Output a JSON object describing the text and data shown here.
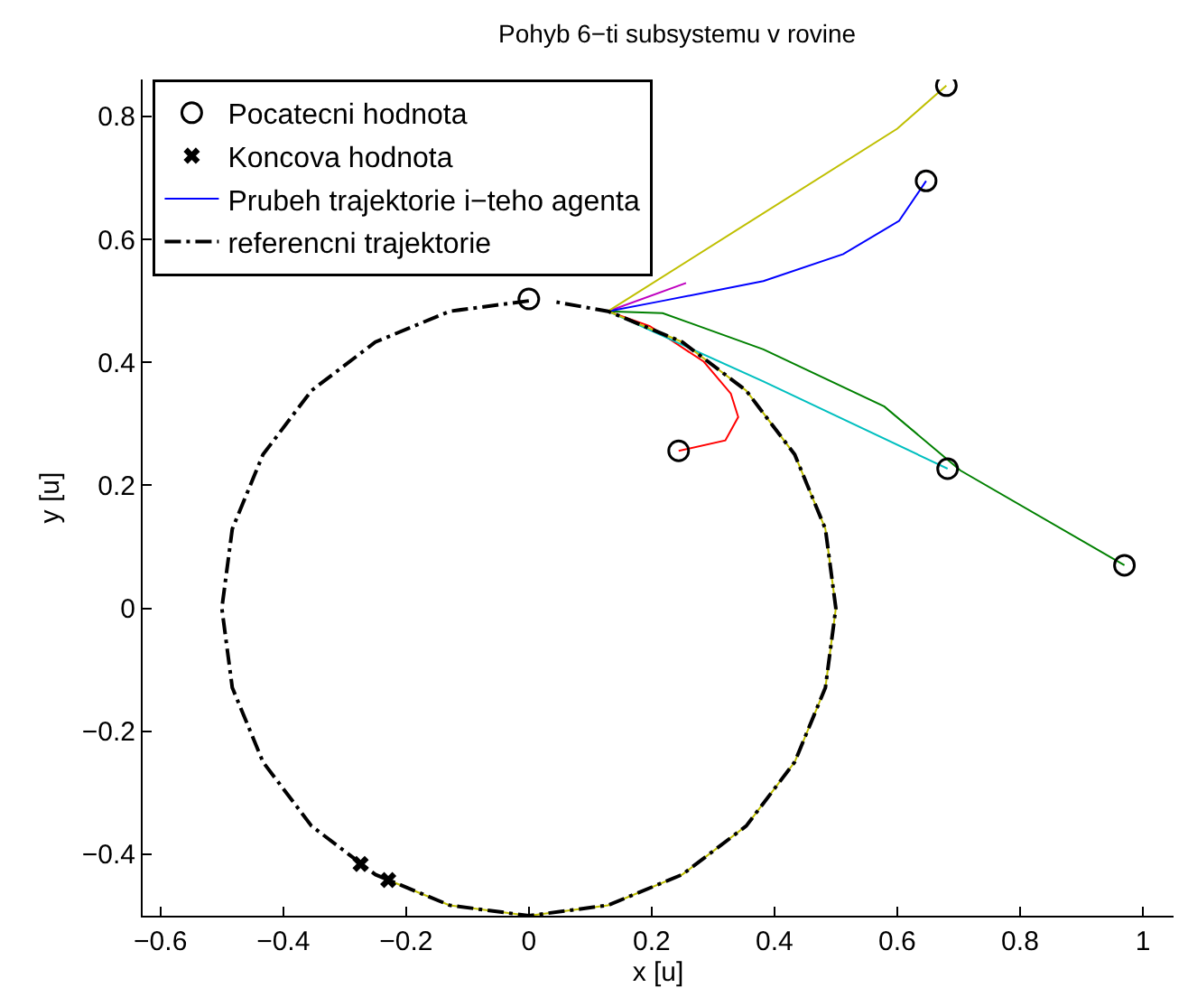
{
  "chart_data": {
    "type": "line",
    "title": "Pohyb 6−ti subsystemu v rovine",
    "xlabel": "x [u]",
    "ylabel": "y [u]",
    "xlim": [
      -0.629,
      1.05
    ],
    "ylim": [
      -0.5,
      0.86
    ],
    "xticks": [
      -0.6,
      -0.4,
      -0.2,
      0,
      0.2,
      0.4,
      0.6,
      0.8,
      1
    ],
    "yticks": [
      -0.4,
      -0.2,
      0,
      0.2,
      0.4,
      0.6,
      0.8
    ],
    "legend": "top left",
    "series": [
      {
        "color": "#bf00bf",
        "line_style": "solid",
        "marker": "none",
        "x": [
          0.256,
          0.129
        ],
        "values": [
          0.529,
          0.483
        ]
      },
      {
        "color": "#ff0000",
        "line_style": "solid",
        "marker": "none",
        "x": [
          0.244,
          0.32,
          0.341,
          0.329,
          0.285,
          0.197,
          0.129
        ],
        "values": [
          0.256,
          0.273,
          0.311,
          0.349,
          0.401,
          0.459,
          0.483
        ]
      },
      {
        "color": "#00bfbf",
        "line_style": "solid",
        "marker": "none",
        "x": [
          0.682,
          0.382,
          0.129
        ],
        "values": [
          0.227,
          0.369,
          0.483
        ]
      },
      {
        "color": "#008000",
        "line_style": "solid",
        "marker": "none",
        "x": [
          0.97,
          0.703,
          0.579,
          0.382,
          0.218,
          0.129
        ],
        "values": [
          0.07,
          0.224,
          0.328,
          0.421,
          0.48,
          0.483
        ]
      },
      {
        "name": "Prubeh trajektorie i−teho agenta",
        "color": "#0000ff",
        "line_style": "solid",
        "marker": "none",
        "x": [
          0.647,
          0.603,
          0.512,
          0.382,
          0.218,
          0.129
        ],
        "values": [
          0.695,
          0.63,
          0.576,
          0.532,
          0.5,
          0.483
        ]
      },
      {
        "color": "#bfbf00",
        "line_style": "solid",
        "marker": "none",
        "x": [
          0.68,
          0.6,
          0.129,
          0.25,
          0.354,
          0.433,
          0.483,
          0.5,
          0.483,
          0.433,
          0.354,
          0.25,
          0.129,
          0,
          -0.129,
          -0.229
        ],
        "values": [
          0.85,
          0.78,
          0.483,
          0.433,
          0.354,
          0.25,
          0.129,
          0,
          -0.129,
          -0.25,
          -0.354,
          -0.433,
          -0.483,
          -0.5,
          -0.483,
          -0.442
        ]
      },
      {
        "name": "referencni trajektorie",
        "color": "#000000",
        "line_style": "dashed",
        "marker": "none",
        "x": [
          0,
          -0.129,
          -0.25,
          -0.354,
          -0.433,
          -0.483,
          -0.5,
          -0.483,
          -0.433,
          -0.354,
          -0.25,
          -0.129,
          0,
          0.129,
          0.25,
          0.354,
          0.433,
          0.483,
          0.5,
          0.483,
          0.433,
          0.354,
          0.25,
          0.129,
          0.045
        ],
        "values": [
          0.5,
          0.483,
          0.433,
          0.354,
          0.25,
          0.129,
          0,
          -0.129,
          -0.25,
          -0.354,
          -0.433,
          -0.483,
          -0.5,
          -0.483,
          -0.433,
          -0.354,
          -0.25,
          -0.129,
          0,
          0.129,
          0.25,
          0.354,
          0.433,
          0.483,
          0.498
        ]
      },
      {
        "name": "Pocatecni hodnota",
        "type": "scatter",
        "color": "#000000",
        "marker": "circle",
        "x": [
          0,
          0.68,
          0.647,
          0.244,
          0.682,
          0.97
        ],
        "values": [
          0.503,
          0.85,
          0.695,
          0.256,
          0.227,
          0.07
        ]
      },
      {
        "name": "Koncova hodnota",
        "type": "scatter",
        "color": "#000000",
        "marker": "cross",
        "x": [
          -0.274,
          -0.229
        ],
        "values": [
          -0.416,
          -0.442
        ]
      }
    ]
  }
}
